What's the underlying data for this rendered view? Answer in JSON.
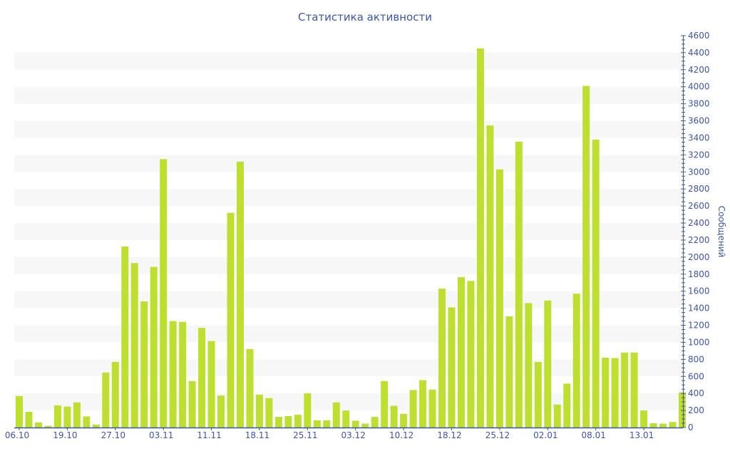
{
  "chart_data": {
    "type": "bar",
    "title": "Статистика активности",
    "xlabel": "",
    "ylabel": "Сообщений",
    "ylim": [
      0,
      4600
    ],
    "y_ticks": [
      0,
      200,
      400,
      600,
      800,
      1000,
      1200,
      1400,
      1600,
      1800,
      2000,
      2200,
      2400,
      2600,
      2800,
      3000,
      3200,
      3400,
      3600,
      3800,
      4000,
      4200,
      4400,
      4600
    ],
    "y_axis_side": "right",
    "grid": "alternating horizontal bands",
    "x_tick_labels": [
      {
        "index": 0,
        "label": "06.10"
      },
      {
        "index": 5,
        "label": "19.10"
      },
      {
        "index": 10,
        "label": "27.10"
      },
      {
        "index": 15,
        "label": "03.11"
      },
      {
        "index": 20,
        "label": "11.11"
      },
      {
        "index": 25,
        "label": "18.11"
      },
      {
        "index": 30,
        "label": "25.11"
      },
      {
        "index": 35,
        "label": "03.12"
      },
      {
        "index": 40,
        "label": "10.12"
      },
      {
        "index": 45,
        "label": "18.12"
      },
      {
        "index": 50,
        "label": "25.12"
      },
      {
        "index": 55,
        "label": "02.01"
      },
      {
        "index": 60,
        "label": "08.01"
      },
      {
        "index": 65,
        "label": "13.01"
      }
    ],
    "values": [
      370,
      185,
      60,
      20,
      260,
      245,
      295,
      130,
      35,
      645,
      770,
      2125,
      1930,
      1480,
      1885,
      3150,
      1250,
      1240,
      545,
      1170,
      1015,
      375,
      2520,
      3120,
      920,
      385,
      345,
      125,
      135,
      150,
      400,
      85,
      85,
      295,
      200,
      80,
      45,
      125,
      545,
      255,
      160,
      440,
      555,
      445,
      1630,
      1410,
      1765,
      1720,
      4450,
      3545,
      3030,
      1305,
      3355,
      1460,
      770,
      1490,
      270,
      515,
      1570,
      4010,
      3380,
      820,
      815,
      880,
      880,
      200,
      50,
      45,
      65,
      410
    ],
    "colors": {
      "bar": "#bde030",
      "axis": "#3d55a6",
      "band": "#f7f7f7"
    }
  }
}
